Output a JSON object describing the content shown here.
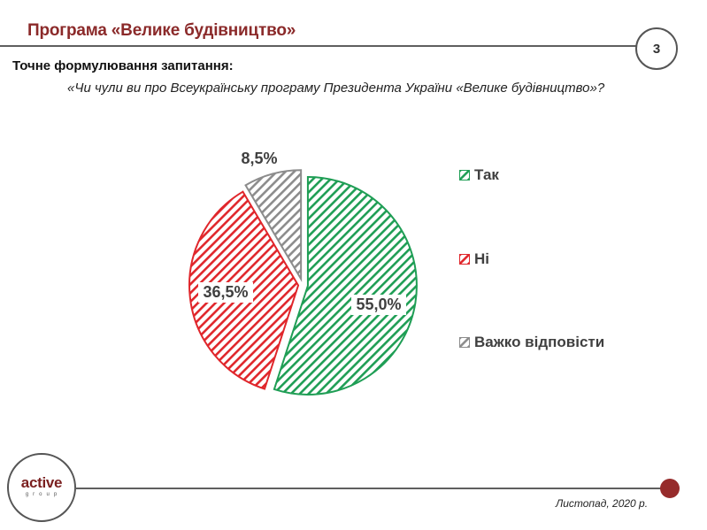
{
  "header": {
    "title": "Програма «Велике будівництво»",
    "page_number": "3"
  },
  "question": {
    "label": "Точне формулювання запитання:",
    "text": "«Чи чули ви про Всеукраїнську програму Президента України «Велике будівництво»?"
  },
  "chart_data": {
    "type": "pie",
    "title": "«Чи чули ви про Всеукраїнську програму Президента України «Велике будівництво»?",
    "categories": [
      "Так",
      "Ні",
      "Важко відповісти"
    ],
    "values": [
      55.0,
      36.5,
      8.5
    ],
    "labels": [
      "55,0%",
      "36,5%",
      "8,5%"
    ],
    "colors": [
      "#1f9e55",
      "#e0262b",
      "#8c8c8c"
    ],
    "fill": "diagonal-hatch",
    "start_angle": "12 o'clock, clockwise",
    "exploded": true,
    "legend_position": "right"
  },
  "legend": {
    "items": [
      {
        "label": "Так",
        "color": "#1f9e55"
      },
      {
        "label": "Ні",
        "color": "#e0262b"
      },
      {
        "label": "Важко відповісти",
        "color": "#8c8c8c"
      }
    ]
  },
  "footer": {
    "logo_main": "active",
    "logo_sub": "group",
    "date": "Листопад, 2020 р.",
    "accent_color": "#962b2b"
  }
}
